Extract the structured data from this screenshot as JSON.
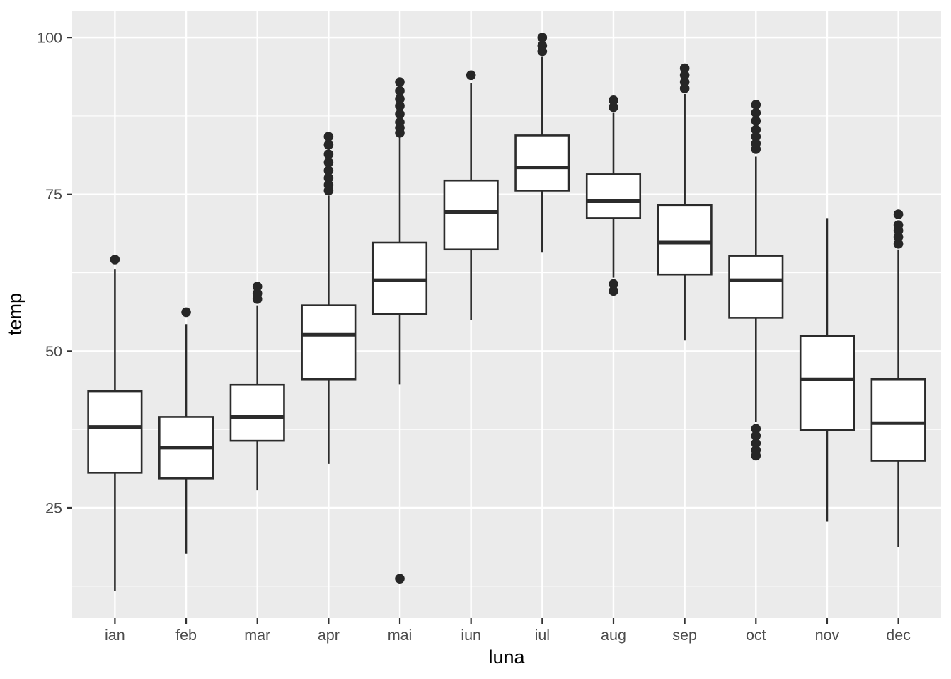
{
  "chart_data": {
    "type": "boxplot",
    "title": "",
    "xlabel": "luna",
    "ylabel": "temp",
    "categories": [
      "ian",
      "feb",
      "mar",
      "apr",
      "mai",
      "iun",
      "iul",
      "aug",
      "sep",
      "oct",
      "nov",
      "dec"
    ],
    "ylim": [
      7.4,
      104.3
    ],
    "y_major_ticks": [
      100,
      75,
      50,
      25
    ],
    "y_tick_labels": [
      "100",
      "75",
      "50",
      "25"
    ],
    "y_minor_gridlines": [
      87.5,
      62.5,
      37.5,
      12.5
    ],
    "grid": "white major and minor horizontal gridlines plus white vertical gridline at each category on grey panel",
    "legend": "none",
    "boxes": [
      {
        "month": "ian",
        "lower_whisker": 11.7,
        "q1": 30.6,
        "median": 37.9,
        "q3": 43.6,
        "upper_whisker": 63.0,
        "outliers": [
          64.6
        ]
      },
      {
        "month": "feb",
        "lower_whisker": 17.7,
        "q1": 29.7,
        "median": 34.6,
        "q3": 39.5,
        "upper_whisker": 54.3,
        "outliers": [
          56.2
        ]
      },
      {
        "month": "mar",
        "lower_whisker": 27.8,
        "q1": 35.7,
        "median": 39.5,
        "q3": 44.6,
        "upper_whisker": 57.3,
        "outliers": [
          58.3,
          59.2,
          60.3
        ]
      },
      {
        "month": "apr",
        "lower_whisker": 32.0,
        "q1": 45.5,
        "median": 52.6,
        "q3": 57.3,
        "upper_whisker": 74.8,
        "outliers": [
          75.6,
          76.5,
          77.6,
          78.8,
          80.1,
          81.4,
          82.9,
          84.2
        ]
      },
      {
        "month": "mai",
        "lower_whisker": 44.7,
        "q1": 55.9,
        "median": 61.3,
        "q3": 67.3,
        "upper_whisker": 84.3,
        "outliers": [
          13.7,
          84.8,
          85.6,
          86.5,
          87.8,
          89.1,
          90.2,
          91.5,
          92.9
        ]
      },
      {
        "month": "iun",
        "lower_whisker": 54.9,
        "q1": 66.2,
        "median": 72.2,
        "q3": 77.2,
        "upper_whisker": 92.7,
        "outliers": [
          94.0
        ]
      },
      {
        "month": "iul",
        "lower_whisker": 65.8,
        "q1": 75.6,
        "median": 79.3,
        "q3": 84.4,
        "upper_whisker": 97.0,
        "outliers": [
          97.8,
          98.7,
          100.0
        ]
      },
      {
        "month": "aug",
        "lower_whisker": 61.7,
        "q1": 71.2,
        "median": 73.9,
        "q3": 78.2,
        "upper_whisker": 88.0,
        "outliers": [
          59.6,
          60.7,
          88.9,
          90.0
        ]
      },
      {
        "month": "sep",
        "lower_whisker": 51.7,
        "q1": 62.2,
        "median": 67.3,
        "q3": 73.3,
        "upper_whisker": 91.0,
        "outliers": [
          91.9,
          92.9,
          94.0,
          95.1
        ]
      },
      {
        "month": "oct",
        "lower_whisker": 38.7,
        "q1": 55.3,
        "median": 61.3,
        "q3": 65.2,
        "upper_whisker": 81.0,
        "outliers": [
          33.3,
          34.2,
          35.3,
          36.5,
          37.6,
          82.2,
          83.1,
          84.2,
          85.3,
          86.7,
          88.0,
          89.3
        ]
      },
      {
        "month": "nov",
        "lower_whisker": 22.8,
        "q1": 37.4,
        "median": 45.5,
        "q3": 52.4,
        "upper_whisker": 71.2,
        "outliers": []
      },
      {
        "month": "dec",
        "lower_whisker": 18.8,
        "q1": 32.5,
        "median": 38.5,
        "q3": 45.5,
        "upper_whisker": 66.2,
        "outliers": [
          67.1,
          68.2,
          69.2,
          70.1,
          71.8
        ]
      }
    ],
    "style": {
      "panel_background": "#EBEBEB",
      "gridline_color": "#FFFFFF",
      "box_stroke": "#2B2B2B",
      "box_fill": "#FFFFFF",
      "outlier_color": "#262626",
      "tick_mark_color": "#333333",
      "tick_label_color": "#4D4D4D",
      "axis_title_color": "#000000"
    }
  }
}
